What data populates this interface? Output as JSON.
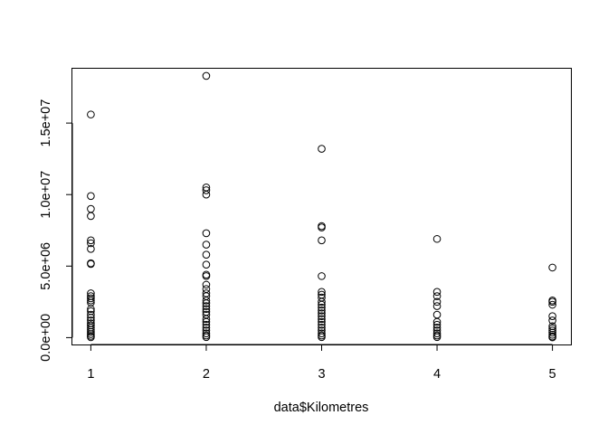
{
  "chart_data": {
    "type": "scatter",
    "title": "",
    "xlabel": "data$Kilometres",
    "ylabel": "",
    "xlim": [
      0.84,
      5.16
    ],
    "ylim": [
      -480000,
      18800000
    ],
    "x_ticks": [
      1,
      2,
      3,
      4,
      5
    ],
    "x_tick_labels": [
      "1",
      "2",
      "3",
      "4",
      "5"
    ],
    "y_ticks": [
      0,
      5000000,
      10000000,
      15000000
    ],
    "y_tick_labels": [
      "0.0e+00",
      "5.0e+06",
      "1.0e+07",
      "1.5e+07"
    ],
    "grid": false,
    "legend": "none",
    "marker": "open-circle",
    "series": [
      {
        "points": [
          [
            1,
            15600000
          ],
          [
            1,
            9900000
          ],
          [
            1,
            9000000
          ],
          [
            1,
            8500000
          ],
          [
            1,
            6800000
          ],
          [
            1,
            6600000
          ],
          [
            1,
            6200000
          ],
          [
            1,
            5200000
          ],
          [
            1,
            5150000
          ],
          [
            1,
            3100000
          ],
          [
            1,
            2900000
          ],
          [
            1,
            2750000
          ],
          [
            1,
            2600000
          ],
          [
            1,
            2450000
          ],
          [
            1,
            2000000
          ],
          [
            1,
            1850000
          ],
          [
            1,
            1600000
          ],
          [
            1,
            1400000
          ],
          [
            1,
            1200000
          ],
          [
            1,
            1000000
          ],
          [
            1,
            850000
          ],
          [
            1,
            700000
          ],
          [
            1,
            550000
          ],
          [
            1,
            400000
          ],
          [
            1,
            250000
          ],
          [
            1,
            120000
          ],
          [
            1,
            30000
          ],
          [
            2,
            18300000
          ],
          [
            2,
            10500000
          ],
          [
            2,
            10300000
          ],
          [
            2,
            10000000
          ],
          [
            2,
            7300000
          ],
          [
            2,
            6500000
          ],
          [
            2,
            5800000
          ],
          [
            2,
            5100000
          ],
          [
            2,
            4400000
          ],
          [
            2,
            4300000
          ],
          [
            2,
            3700000
          ],
          [
            2,
            3400000
          ],
          [
            2,
            3100000
          ],
          [
            2,
            2900000
          ],
          [
            2,
            2600000
          ],
          [
            2,
            2400000
          ],
          [
            2,
            2200000
          ],
          [
            2,
            2000000
          ],
          [
            2,
            1800000
          ],
          [
            2,
            1600000
          ],
          [
            2,
            1300000
          ],
          [
            2,
            1100000
          ],
          [
            2,
            900000
          ],
          [
            2,
            700000
          ],
          [
            2,
            500000
          ],
          [
            2,
            300000
          ],
          [
            2,
            150000
          ],
          [
            2,
            40000
          ],
          [
            3,
            13200000
          ],
          [
            3,
            7800000
          ],
          [
            3,
            7700000
          ],
          [
            3,
            6800000
          ],
          [
            3,
            4300000
          ],
          [
            3,
            3200000
          ],
          [
            3,
            3000000
          ],
          [
            3,
            2800000
          ],
          [
            3,
            2500000
          ],
          [
            3,
            2300000
          ],
          [
            3,
            2100000
          ],
          [
            3,
            1900000
          ],
          [
            3,
            1700000
          ],
          [
            3,
            1500000
          ],
          [
            3,
            1300000
          ],
          [
            3,
            1100000
          ],
          [
            3,
            900000
          ],
          [
            3,
            700000
          ],
          [
            3,
            500000
          ],
          [
            3,
            300000
          ],
          [
            3,
            150000
          ],
          [
            3,
            40000
          ],
          [
            4,
            6900000
          ],
          [
            4,
            3200000
          ],
          [
            4,
            2900000
          ],
          [
            4,
            2500000
          ],
          [
            4,
            2200000
          ],
          [
            4,
            1600000
          ],
          [
            4,
            1100000
          ],
          [
            4,
            900000
          ],
          [
            4,
            700000
          ],
          [
            4,
            500000
          ],
          [
            4,
            300000
          ],
          [
            4,
            150000
          ],
          [
            4,
            40000
          ],
          [
            5,
            4900000
          ],
          [
            5,
            2600000
          ],
          [
            5,
            2500000
          ],
          [
            5,
            2300000
          ],
          [
            5,
            1500000
          ],
          [
            5,
            1200000
          ],
          [
            5,
            800000
          ],
          [
            5,
            650000
          ],
          [
            5,
            500000
          ],
          [
            5,
            350000
          ],
          [
            5,
            200000
          ],
          [
            5,
            80000
          ],
          [
            5,
            20000
          ]
        ]
      }
    ]
  }
}
